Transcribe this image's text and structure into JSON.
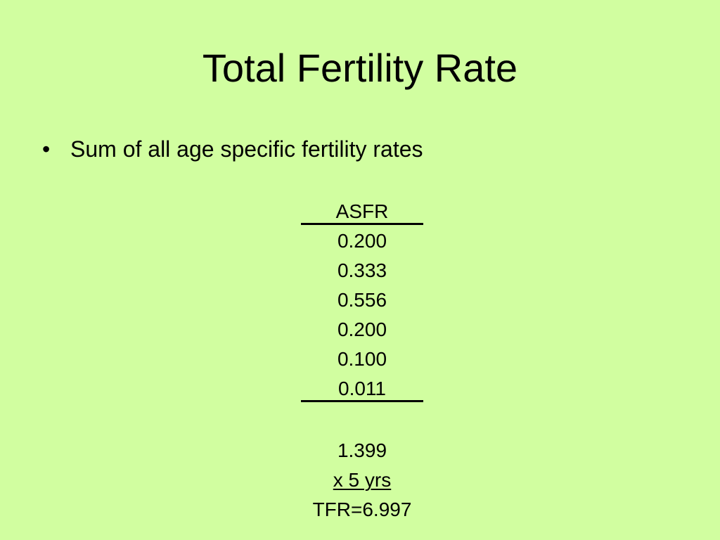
{
  "slide": {
    "title": "Total Fertility Rate",
    "bullets": [
      {
        "icon": "bullet-dot-icon",
        "glyph": "•",
        "text": "Sum of all age specific fertility rates"
      }
    ],
    "calculation": {
      "header": "ASFR",
      "values": [
        "0.200",
        "0.333",
        "0.556",
        "0.200",
        "0.100",
        "0.011"
      ],
      "sum": "1.399",
      "multiplier": "x 5 yrs",
      "result": "TFR=6.997"
    }
  },
  "colors": {
    "background": "#d1fea0",
    "text": "#000000"
  }
}
